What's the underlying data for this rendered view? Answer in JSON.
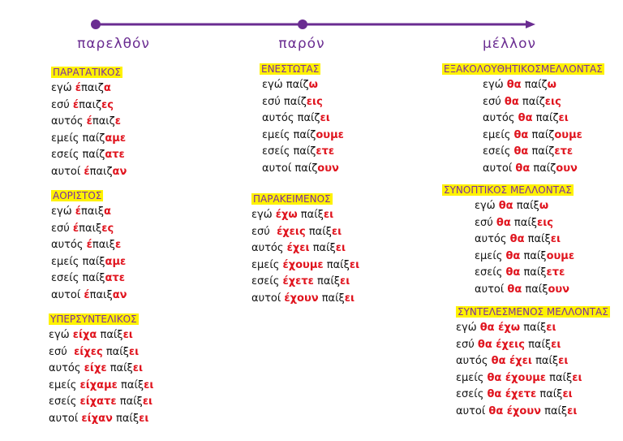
{
  "headings": [
    "παρελθόν",
    "παρόν",
    "μέλλον"
  ],
  "columns": [
    {
      "sections": [
        {
          "title": "ΠΑΡΑΤΑΤΙΚΟΣ",
          "rows": [
            [
              "εγώ ",
              "έ",
              "παιζ",
              "α"
            ],
            [
              "εσύ ",
              "έ",
              "παιζ",
              "ες"
            ],
            [
              "αυτός ",
              "έ",
              "παιζ",
              "ε"
            ],
            [
              "εμείς παίζ",
              "αμε"
            ],
            [
              "εσείς παίζ",
              "ατε"
            ],
            [
              "αυτοί ",
              "έ",
              "παιζ",
              "αν"
            ]
          ]
        },
        {
          "title": "ΑΟΡΙΣΤΟΣ",
          "rows": [
            [
              "εγώ ",
              "έ",
              "παιξ",
              "α"
            ],
            [
              "εσύ ",
              "έ",
              "παιξ",
              "ες"
            ],
            [
              "αυτός ",
              "έ",
              "παιξ",
              "ε"
            ],
            [
              "εμείς παίξ",
              "αμε"
            ],
            [
              "εσείς παίξ",
              "ατε"
            ],
            [
              "αυτοί ",
              "έ",
              "παιξ",
              "αν"
            ]
          ]
        },
        {
          "title": "ΥΠΕΡΣΥΝΤΕΛΙΚΟΣ",
          "rows": [
            [
              "εγώ ",
              "είχα",
              " παίξ",
              "ει"
            ],
            [
              "εσύ  ",
              "είχες",
              " παίξ",
              "ει"
            ],
            [
              "αυτός ",
              "είχε",
              " παίξ",
              "ει"
            ],
            [
              "εμείς ",
              "είχαμε",
              " παίξ",
              "ει"
            ],
            [
              "εσείς ",
              "είχατε",
              " παίξ",
              "ει"
            ],
            [
              "αυτοί ",
              "είχαν",
              " παίξ",
              "ει"
            ]
          ]
        }
      ]
    },
    {
      "sections": [
        {
          "title": "ΕΝΕΣΤΩΤΑΣ",
          "rows": [
            [
              "εγώ παίζ",
              "ω"
            ],
            [
              "εσύ παίζ",
              "εις"
            ],
            [
              "αυτός παίζ",
              "ει"
            ],
            [
              "εμείς παίζ",
              "ουμε"
            ],
            [
              "εσείς παίζ",
              "ετε"
            ],
            [
              "αυτοί παίζ",
              "ουν"
            ]
          ]
        },
        {
          "title": "ΠΑΡΑΚΕΙΜΕΝΟΣ",
          "rows": [
            [
              "εγώ ",
              "έχω",
              " παίξ",
              "ει"
            ],
            [
              "εσύ  ",
              "έχεις",
              " παίξ",
              "ει"
            ],
            [
              "αυτός ",
              "έχει",
              " παίξ",
              "ει"
            ],
            [
              "εμείς ",
              "έχουμε",
              " παίξ",
              "ει"
            ],
            [
              "εσείς ",
              "έχετε",
              " παίξ",
              "ει"
            ],
            [
              "αυτοί ",
              "έχουν",
              " παίξ",
              "ει"
            ]
          ]
        }
      ]
    },
    {
      "sections": [
        {
          "title": "ΕΞΑΚΟΛΟΥΘΗΤΙΚΟΣΜΕΛΛΟΝΤΑΣ",
          "rows": [
            [
              "εγώ ",
              "θα",
              " παίζ",
              "ω"
            ],
            [
              "εσύ ",
              "θα",
              " παίζ",
              "εις"
            ],
            [
              "αυτός ",
              "θα",
              " παίζ",
              "ει"
            ],
            [
              "εμείς ",
              "θα",
              " παίζ",
              "ουμε"
            ],
            [
              "εσείς ",
              "θα",
              " παίζ",
              "ετε"
            ],
            [
              "αυτοί ",
              "θα",
              " παίζ",
              "ουν"
            ]
          ]
        },
        {
          "title": "ΣΥΝΟΠΤΙΚΟΣ ΜΕΛΛΟΝΤΑΣ",
          "rows": [
            [
              "εγώ ",
              "θα",
              " παίξ",
              "ω"
            ],
            [
              "εσύ ",
              "θα",
              " παίξ",
              "εις"
            ],
            [
              "αυτός ",
              "θα",
              " παίξ",
              "ει"
            ],
            [
              "εμείς ",
              "θα",
              " παίξ",
              "ουμε"
            ],
            [
              "εσείς ",
              "θα",
              " παίξ",
              "ετε"
            ],
            [
              "αυτοί ",
              "θα",
              " παίξ",
              "ουν"
            ]
          ]
        },
        {
          "title": "ΣΥΝΤΕΛΕΣΜΕΝΟΣ ΜΕΛΛΟΝΤΑΣ",
          "rows": [
            [
              "εγώ ",
              "θα έχω",
              " παίξ",
              "ει"
            ],
            [
              "εσύ ",
              "θα έχεις",
              " παίξ",
              "ει"
            ],
            [
              "αυτός ",
              "θα έχει",
              " παίξ",
              "ει"
            ],
            [
              "εμείς ",
              "θα έχουμε",
              " παίξ",
              "ει"
            ],
            [
              "εσείς ",
              "θα έχετε",
              " παίξ",
              "ει"
            ],
            [
              "αυτοί ",
              "θα έχουν",
              " παίξ",
              "ει"
            ]
          ]
        }
      ]
    }
  ]
}
